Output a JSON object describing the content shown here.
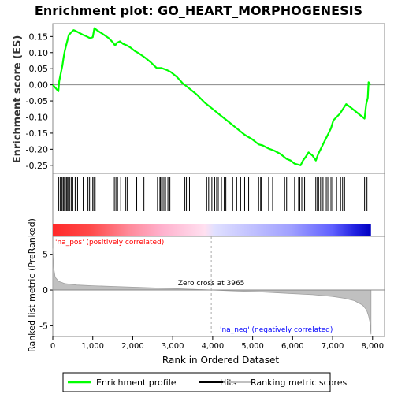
{
  "chart_data": {
    "type": "line",
    "title": "Enrichment plot: GO_HEART_MORPHOGENESIS",
    "es_panel": {
      "ylabel": "Enrichment score (ES)",
      "ylim": [
        -0.275,
        0.19
      ],
      "yticks": [
        -0.25,
        -0.2,
        -0.15,
        -0.1,
        -0.05,
        0.0,
        0.05,
        0.1,
        0.15
      ],
      "ytick_labels": [
        "-0.25",
        "-0.20",
        "-0.15",
        "-0.10",
        "-0.05",
        "0.00",
        "0.05",
        "0.10",
        "0.15"
      ],
      "series": [
        {
          "name": "Enrichment profile",
          "color": "#00ff00",
          "points": [
            [
              0,
              0.0
            ],
            [
              140,
              -0.02
            ],
            [
              160,
              0.01
            ],
            [
              200,
              0.035
            ],
            [
              240,
              0.06
            ],
            [
              270,
              0.085
            ],
            [
              300,
              0.105
            ],
            [
              340,
              0.125
            ],
            [
              370,
              0.14
            ],
            [
              400,
              0.155
            ],
            [
              440,
              0.16
            ],
            [
              480,
              0.165
            ],
            [
              520,
              0.17
            ],
            [
              560,
              0.168
            ],
            [
              650,
              0.162
            ],
            [
              760,
              0.155
            ],
            [
              850,
              0.15
            ],
            [
              930,
              0.145
            ],
            [
              1000,
              0.148
            ],
            [
              1040,
              0.176
            ],
            [
              1100,
              0.17
            ],
            [
              1250,
              0.158
            ],
            [
              1400,
              0.145
            ],
            [
              1500,
              0.132
            ],
            [
              1560,
              0.122
            ],
            [
              1600,
              0.13
            ],
            [
              1680,
              0.135
            ],
            [
              1760,
              0.127
            ],
            [
              1860,
              0.122
            ],
            [
              1950,
              0.115
            ],
            [
              2050,
              0.105
            ],
            [
              2150,
              0.098
            ],
            [
              2300,
              0.085
            ],
            [
              2450,
              0.07
            ],
            [
              2600,
              0.052
            ],
            [
              2720,
              0.052
            ],
            [
              2850,
              0.046
            ],
            [
              2950,
              0.04
            ],
            [
              3100,
              0.025
            ],
            [
              3250,
              0.005
            ],
            [
              3400,
              -0.01
            ],
            [
              3600,
              -0.03
            ],
            [
              3800,
              -0.055
            ],
            [
              4000,
              -0.075
            ],
            [
              4200,
              -0.095
            ],
            [
              4400,
              -0.115
            ],
            [
              4600,
              -0.135
            ],
            [
              4800,
              -0.155
            ],
            [
              5000,
              -0.17
            ],
            [
              5150,
              -0.185
            ],
            [
              5250,
              -0.188
            ],
            [
              5400,
              -0.198
            ],
            [
              5550,
              -0.205
            ],
            [
              5700,
              -0.215
            ],
            [
              5850,
              -0.23
            ],
            [
              5950,
              -0.235
            ],
            [
              6050,
              -0.245
            ],
            [
              6200,
              -0.25
            ],
            [
              6260,
              -0.235
            ],
            [
              6320,
              -0.225
            ],
            [
              6400,
              -0.21
            ],
            [
              6500,
              -0.22
            ],
            [
              6580,
              -0.235
            ],
            [
              6640,
              -0.215
            ],
            [
              6720,
              -0.195
            ],
            [
              6800,
              -0.175
            ],
            [
              6880,
              -0.155
            ],
            [
              6960,
              -0.135
            ],
            [
              7020,
              -0.11
            ],
            [
              7100,
              -0.1
            ],
            [
              7180,
              -0.09
            ],
            [
              7260,
              -0.075
            ],
            [
              7340,
              -0.06
            ],
            [
              7450,
              -0.07
            ],
            [
              7600,
              -0.085
            ],
            [
              7700,
              -0.095
            ],
            [
              7800,
              -0.105
            ],
            [
              7840,
              -0.06
            ],
            [
              7880,
              -0.04
            ],
            [
              7900,
              0.008
            ],
            [
              7950,
              0.0
            ]
          ]
        }
      ]
    },
    "hits_panel": {
      "name": "Hits",
      "hits": [
        150,
        190,
        230,
        260,
        280,
        310,
        340,
        360,
        390,
        420,
        460,
        500,
        560,
        620,
        760,
        880,
        920,
        1000,
        1030,
        1060,
        1540,
        1580,
        1620,
        1700,
        1820,
        1860,
        2100,
        2280,
        2620,
        2680,
        2700,
        2740,
        2780,
        2820,
        2880,
        2930,
        3300,
        3340,
        3380,
        3420,
        3850,
        3900,
        3980,
        4050,
        4100,
        4140,
        4220,
        4290,
        4330,
        4500,
        4600,
        4700,
        4800,
        4900,
        5150,
        5200,
        5220,
        5400,
        5500,
        5800,
        5850,
        6050,
        6150,
        6180,
        6230,
        6260,
        6300,
        6580,
        6620,
        6650,
        6700,
        6760,
        6820,
        6860,
        6900,
        6960,
        7000,
        7100,
        7200,
        7250,
        7300,
        7800,
        7860
      ]
    },
    "rank_panel": {
      "ylabel": "Ranked list metric (PreRanked)",
      "xlabel": "Rank in Ordered Dataset",
      "ylim": [
        -6.5,
        7.5
      ],
      "yticks": [
        -5,
        0,
        5
      ],
      "ytick_labels": [
        "-5",
        "0",
        "5"
      ],
      "series_name": "Ranking metric scores",
      "metric_curve": [
        [
          0,
          5.8
        ],
        [
          20,
          3.2
        ],
        [
          60,
          1.8
        ],
        [
          150,
          1.2
        ],
        [
          300,
          0.9
        ],
        [
          600,
          0.7
        ],
        [
          1000,
          0.6
        ],
        [
          1500,
          0.5
        ],
        [
          2000,
          0.4
        ],
        [
          2500,
          0.3
        ],
        [
          3000,
          0.2
        ],
        [
          3500,
          0.1
        ],
        [
          3965,
          0.0
        ],
        [
          4500,
          -0.12
        ],
        [
          5000,
          -0.22
        ],
        [
          5500,
          -0.35
        ],
        [
          6000,
          -0.5
        ],
        [
          6500,
          -0.65
        ],
        [
          7000,
          -0.9
        ],
        [
          7300,
          -1.15
        ],
        [
          7550,
          -1.5
        ],
        [
          7750,
          -2.1
        ],
        [
          7850,
          -2.8
        ],
        [
          7900,
          -3.6
        ],
        [
          7940,
          -4.6
        ],
        [
          7960,
          -6.2
        ]
      ],
      "zero_cross_label": "Zero cross at 3965",
      "zero_cross": 3965,
      "pos_label": "'na_pos' (positively correlated)",
      "neg_label": "'na_neg' (negatively correlated)",
      "pos_color": "#ff0000",
      "neg_color": "#0000ff"
    },
    "xlim": [
      0,
      8300
    ],
    "xticks": [
      0,
      1000,
      2000,
      3000,
      4000,
      5000,
      6000,
      7000,
      8000
    ],
    "xtick_labels": [
      "0",
      "1,000",
      "2,000",
      "3,000",
      "4,000",
      "5,000",
      "6,000",
      "7,000",
      "8,000"
    ],
    "n_genes": 7960,
    "legend": {
      "placement": "bottom",
      "entries": [
        {
          "label": "Enrichment profile",
          "color": "#00ff00"
        },
        {
          "label": "Hits",
          "color": "#000000"
        },
        {
          "label": "Ranking metric scores",
          "color": "#c0c0c0"
        }
      ]
    }
  }
}
